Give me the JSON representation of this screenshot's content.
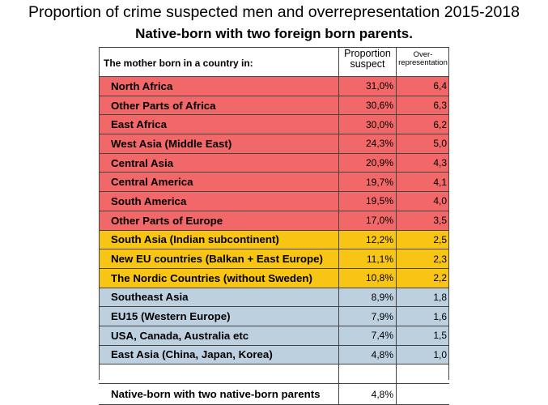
{
  "title": "Proportion of crime suspected men and overrepresentation 2015-2018",
  "subtitle": "Native-born with two foreign born parents.",
  "header": {
    "country": "The mother born in a country in:",
    "proportion_line1": "Proportion",
    "proportion_line2": "suspect",
    "over_line1": "Over-",
    "over_line2": "representation"
  },
  "colors": {
    "red": "#f26868",
    "yellow": "#f8c514",
    "blue": "#bcd0e0"
  },
  "chart_data": {
    "type": "table",
    "title": "Proportion of crime suspected men and overrepresentation 2015-2018",
    "subtitle": "Native-born with two foreign born parents.",
    "columns": [
      "The mother born in a country in:",
      "Proportion suspect",
      "Over-representation"
    ],
    "rows": [
      {
        "region": "North Africa",
        "proportion": "31,0%",
        "over": "6,4",
        "color": "red"
      },
      {
        "region": "Other Parts of Africa",
        "proportion": "30,6%",
        "over": "6,3",
        "color": "red"
      },
      {
        "region": "East Africa",
        "proportion": "30,0%",
        "over": "6,2",
        "color": "red"
      },
      {
        "region": "West Asia (Middle East)",
        "proportion": "24,3%",
        "over": "5,0",
        "color": "red"
      },
      {
        "region": "Central Asia",
        "proportion": "20,9%",
        "over": "4,3",
        "color": "red"
      },
      {
        "region": "Central America",
        "proportion": "19,7%",
        "over": "4,1",
        "color": "red"
      },
      {
        "region": "South America",
        "proportion": "19,5%",
        "over": "4,0",
        "color": "red"
      },
      {
        "region": "Other Parts of Europe",
        "proportion": "17,0%",
        "over": "3,5",
        "color": "red"
      },
      {
        "region": "South Asia (Indian subcontinent)",
        "proportion": "12,2%",
        "over": "2,5",
        "color": "yellow"
      },
      {
        "region": "New EU countries (Balkan + East Europe)",
        "proportion": "11,1%",
        "over": "2,3",
        "color": "yellow"
      },
      {
        "region": "The Nordic Countries (without Sweden)",
        "proportion": "10,8%",
        "over": "2,2",
        "color": "yellow"
      },
      {
        "region": "Southeast Asia",
        "proportion": "8,9%",
        "over": "1,8",
        "color": "blue"
      },
      {
        "region": "EU15 (Western Europe)",
        "proportion": "7,9%",
        "over": "1,6",
        "color": "blue"
      },
      {
        "region": "USA, Canada, Australia etc",
        "proportion": "7,4%",
        "over": "1,5",
        "color": "blue"
      },
      {
        "region": "East Asia (China, Japan, Korea)",
        "proportion": "4,8%",
        "over": "1,0",
        "color": "blue"
      }
    ],
    "native": {
      "region": "Native-born with two native-born parents",
      "proportion": "4,8%"
    }
  }
}
